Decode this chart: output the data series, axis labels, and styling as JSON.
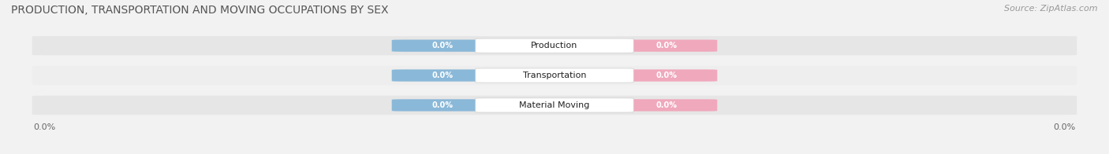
{
  "title": "PRODUCTION, TRANSPORTATION AND MOVING OCCUPATIONS BY SEX",
  "source": "Source: ZipAtlas.com",
  "categories": [
    "Production",
    "Transportation",
    "Material Moving"
  ],
  "male_values": [
    "0.0%",
    "0.0%",
    "0.0%"
  ],
  "female_values": [
    "0.0%",
    "0.0%",
    "0.0%"
  ],
  "male_color": "#8ab8d8",
  "female_color": "#f0a8bc",
  "bar_bg_color": "#e6e6e6",
  "bar_bg_color2": "#eeeeee",
  "x_tick_labels": [
    "0.0%",
    "0.0%"
  ],
  "title_fontsize": 10,
  "source_fontsize": 8,
  "cat_fontsize": 8,
  "val_fontsize": 7,
  "legend_fontsize": 8,
  "fig_width": 14.06,
  "fig_height": 1.96,
  "background_color": "#f2f2f2"
}
